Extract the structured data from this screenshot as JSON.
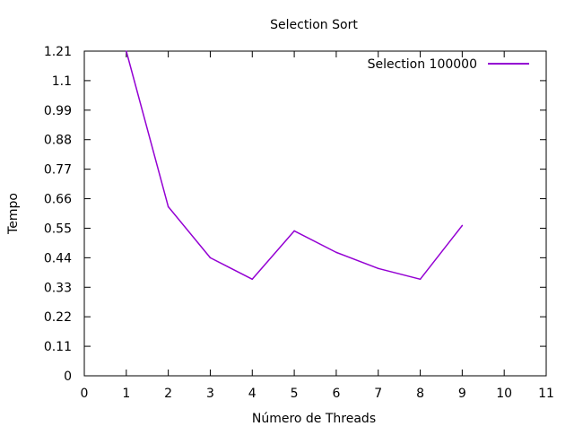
{
  "chart_data": {
    "type": "line",
    "title": "Selection Sort",
    "xlabel": "Número de Threads",
    "ylabel": "Tempo",
    "xlim": [
      0,
      11
    ],
    "ylim": [
      0,
      1.21
    ],
    "x_ticks": [
      0,
      1,
      2,
      3,
      4,
      5,
      6,
      7,
      8,
      9,
      10,
      11
    ],
    "x_tick_labels": [
      "0",
      "1",
      "2",
      "3",
      "4",
      "5",
      "6",
      "7",
      "8",
      "9",
      "10",
      "11"
    ],
    "y_ticks": [
      0,
      0.11,
      0.22,
      0.33,
      0.44,
      0.55,
      0.66,
      0.77,
      0.88,
      0.99,
      1.1,
      1.21
    ],
    "y_tick_labels": [
      "0",
      "0.11",
      "0.22",
      "0.33",
      "0.44",
      "0.55",
      "0.66",
      "0.77",
      "0.88",
      "0.99",
      "1.1",
      "1.21"
    ],
    "grid": false,
    "legend_position": "top-right",
    "series": [
      {
        "name": "Selection 100000",
        "color": "#9400d3",
        "x": [
          1,
          2,
          3,
          4,
          5,
          6,
          7,
          8,
          9
        ],
        "y": [
          1.21,
          0.63,
          0.44,
          0.36,
          0.54,
          0.46,
          0.4,
          0.36,
          0.56
        ]
      }
    ]
  }
}
